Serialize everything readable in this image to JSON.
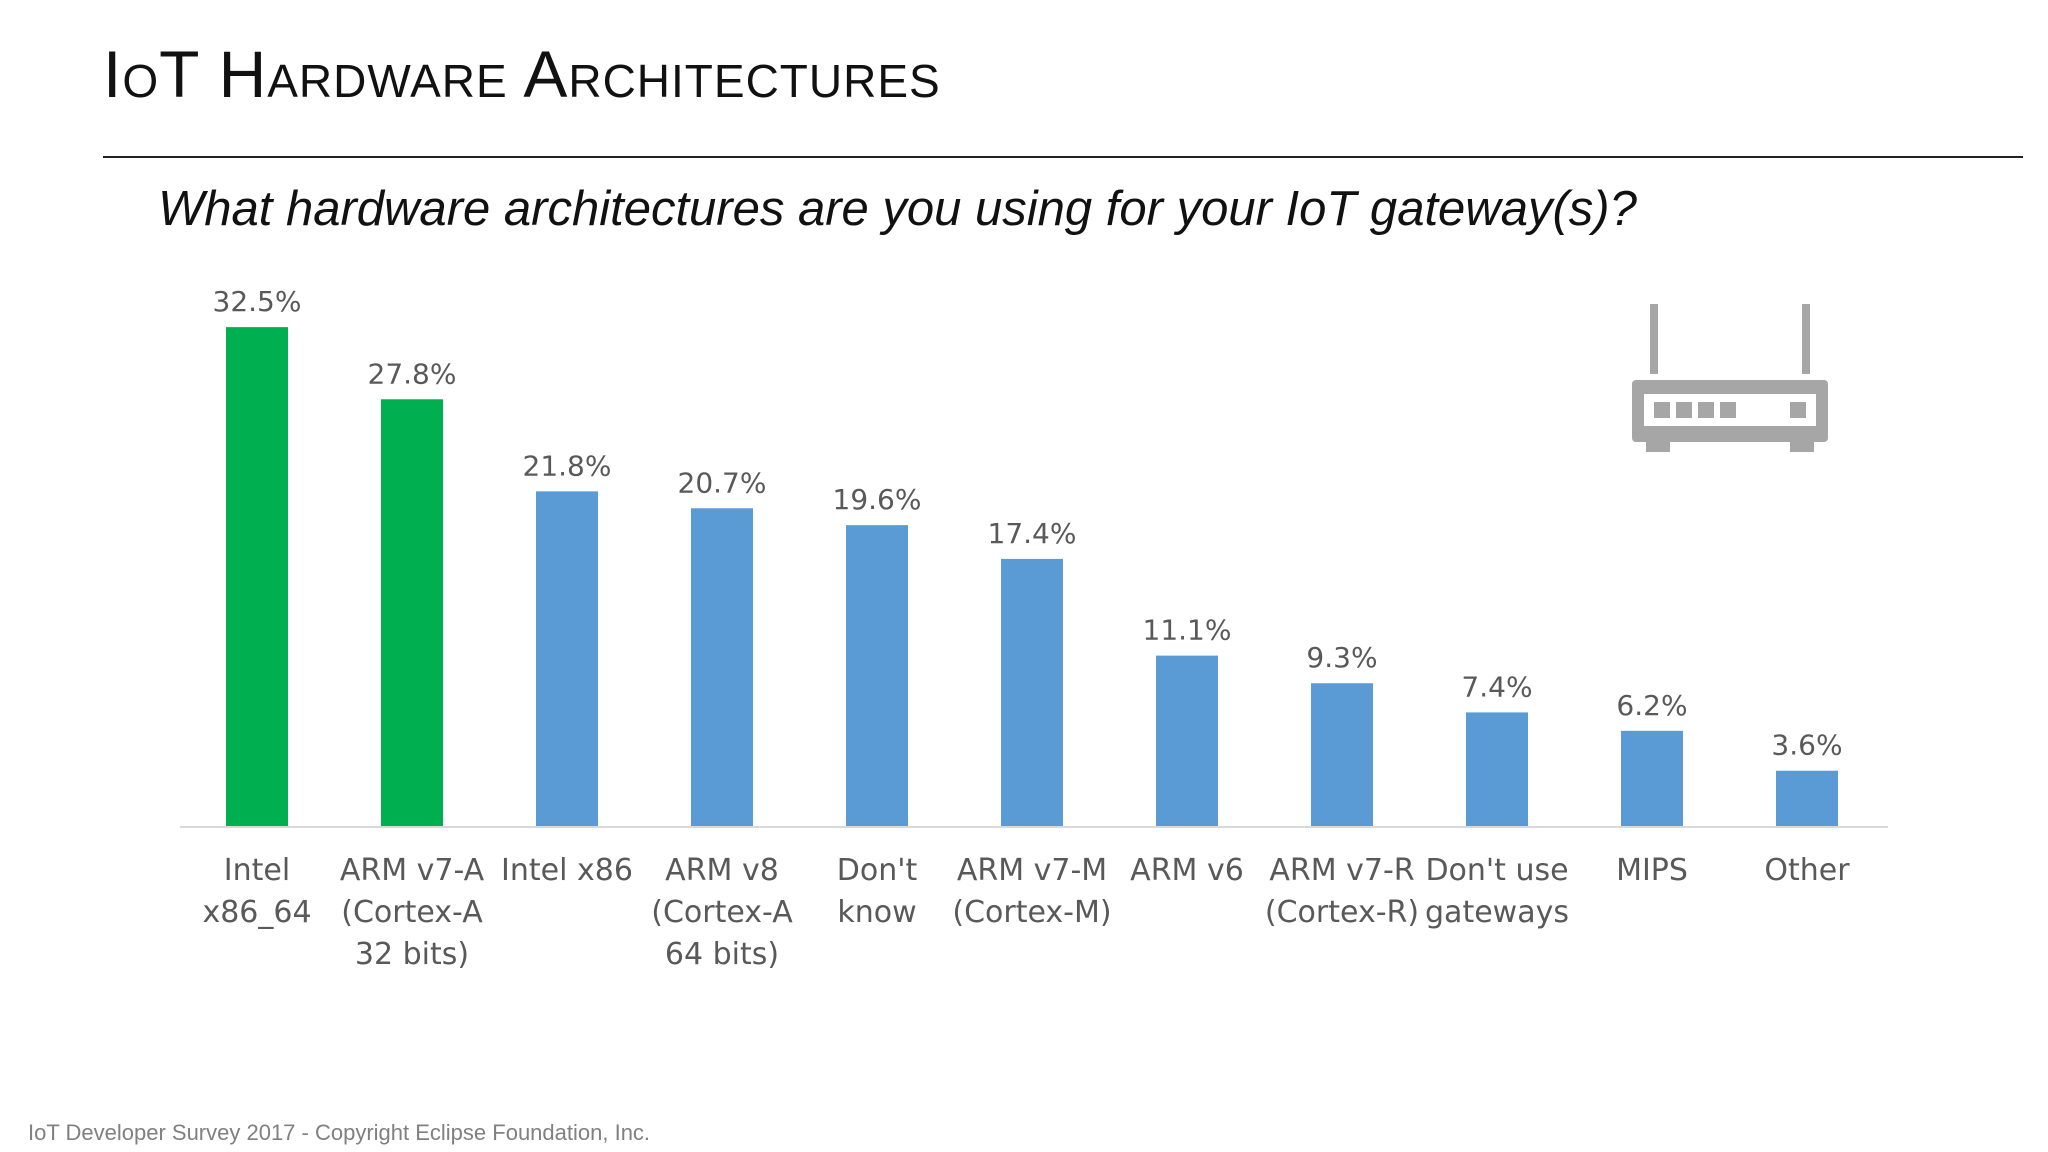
{
  "slide": {
    "title": "IoT Hardware Architectures",
    "subtitle": "What hardware architectures are you using for your IoT gateway(s)?",
    "footer": "IoT Developer Survey 2017 - Copyright Eclipse Foundation, Inc."
  },
  "icon": {
    "name": "router-icon",
    "color": "#a6a6a6"
  },
  "colors": {
    "highlight": "#00b050",
    "default": "#5b9bd5",
    "axis": "#d9d9d9",
    "label": "#595959"
  },
  "chart_data": {
    "type": "bar",
    "title": "",
    "xlabel": "",
    "ylabel": "",
    "ylim": [
      0,
      35
    ],
    "grid": false,
    "categories": [
      [
        "Intel",
        "x86_64"
      ],
      [
        "ARM v7-A",
        "(Cortex-A",
        "32 bits)"
      ],
      [
        "Intel x86"
      ],
      [
        "ARM v8",
        "(Cortex-A",
        "64 bits)"
      ],
      [
        "Don't",
        "know"
      ],
      [
        "ARM v7-M",
        "(Cortex-M)"
      ],
      [
        "ARM v6"
      ],
      [
        "ARM v7-R",
        "(Cortex-R)"
      ],
      [
        "Don't use",
        "gateways"
      ],
      [
        "MIPS"
      ],
      [
        "Other"
      ]
    ],
    "values": [
      32.5,
      27.8,
      21.8,
      20.7,
      19.6,
      17.4,
      11.1,
      9.3,
      7.4,
      6.2,
      3.6
    ],
    "data_labels": [
      "32.5%",
      "27.8%",
      "21.8%",
      "20.7%",
      "19.6%",
      "17.4%",
      "11.1%",
      "9.3%",
      "7.4%",
      "6.2%",
      "3.6%"
    ],
    "highlighted": [
      true,
      true,
      false,
      false,
      false,
      false,
      false,
      false,
      false,
      false,
      false
    ]
  }
}
